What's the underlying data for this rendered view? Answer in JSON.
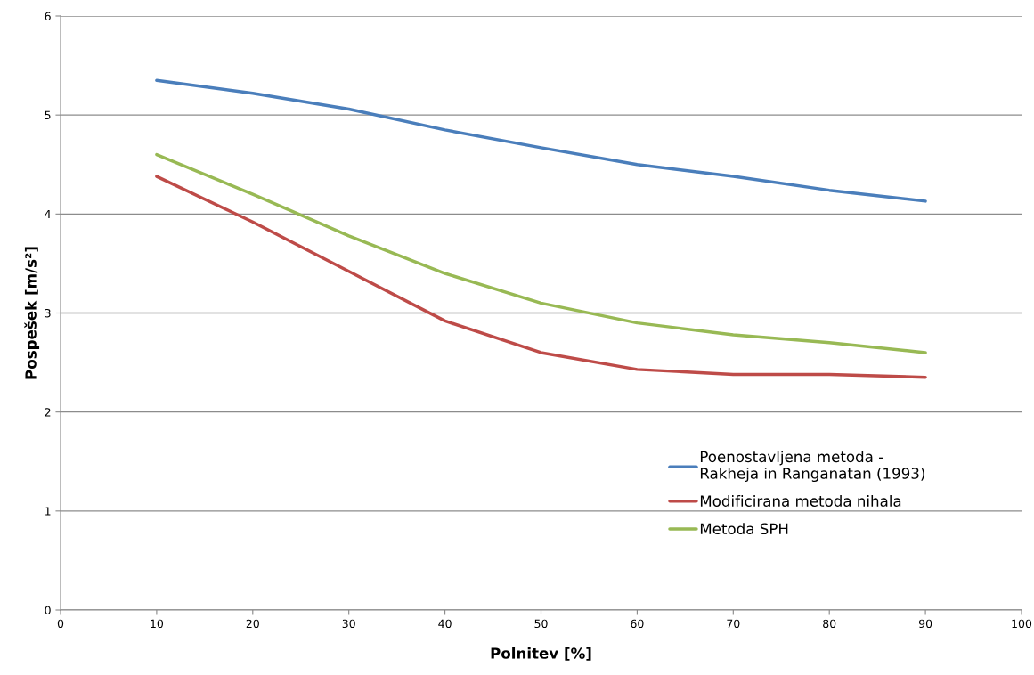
{
  "chart_data": {
    "type": "line",
    "xlabel": "Polnitev [%]",
    "ylabel": "Pospešek [m/s²]",
    "x": [
      10,
      20,
      30,
      40,
      50,
      60,
      70,
      80,
      90
    ],
    "series": [
      {
        "name": "Poenostavljena metoda -\nRakheja in Ranganatan (1993)",
        "color": "#4a7ebb",
        "values": [
          5.35,
          5.22,
          5.06,
          4.85,
          4.67,
          4.5,
          4.38,
          4.24,
          4.13
        ]
      },
      {
        "name": "Modificirana metoda nihala",
        "color": "#be4b48",
        "values": [
          4.38,
          3.92,
          3.42,
          2.92,
          2.6,
          2.43,
          2.38,
          2.38,
          2.35
        ]
      },
      {
        "name": "Metoda SPH",
        "color": "#98b954",
        "values": [
          4.6,
          4.2,
          3.78,
          3.4,
          3.1,
          2.9,
          2.78,
          2.7,
          2.6
        ]
      }
    ],
    "xlim": [
      0,
      100
    ],
    "xticks": [
      0,
      10,
      20,
      30,
      40,
      50,
      60,
      70,
      80,
      90,
      100
    ],
    "ylim": [
      0,
      6
    ],
    "yticks": [
      0,
      1,
      2,
      3,
      4,
      5,
      6
    ],
    "grid": "y",
    "legend": "right",
    "marker": "none",
    "line_style": "solid"
  }
}
